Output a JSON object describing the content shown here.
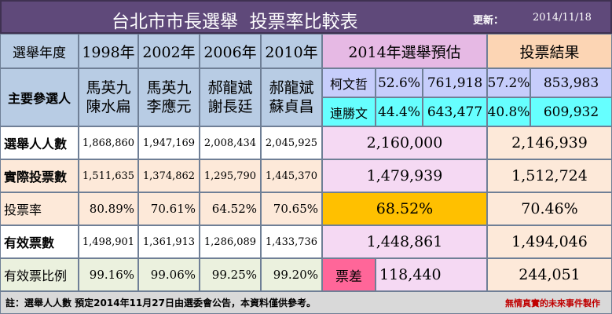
{
  "title": {
    "main": "台北市市長選舉  投票率比較表",
    "updated_label": "更新：",
    "updated_date": "2014/11/18"
  },
  "header": {
    "year_label": "選舉年度",
    "years": [
      "1998年",
      "2002年",
      "2006年",
      "2010年"
    ],
    "forecast": "2014年選舉預估",
    "result": "投票結果"
  },
  "candidates": {
    "label": "主要參選人",
    "y1998": [
      "馬英九",
      "陳水扁"
    ],
    "y2002": [
      "馬英九",
      "李應元"
    ],
    "y2006": [
      "郝龍斌",
      "謝長廷"
    ],
    "y2010": [
      "郝龍斌",
      "蘇貞昌"
    ],
    "c1": {
      "name": "柯文哲",
      "forecast_pct": "52.6%",
      "forecast_votes": "761,918",
      "result_pct": "57.2%",
      "result_votes": "853,983"
    },
    "c2": {
      "name": "連勝文",
      "forecast_pct": "44.4%",
      "forecast_votes": "643,477",
      "result_pct": "40.8%",
      "result_votes": "609,932"
    }
  },
  "rows": [
    {
      "label": "選舉人人數",
      "values": [
        "1,868,860",
        "1,947,169",
        "2,008,434",
        "2,045,925"
      ],
      "forecast": "2,160,000",
      "result": "2,146,939"
    },
    {
      "label": "實際投票數",
      "values": [
        "1,511,635",
        "1,374,862",
        "1,295,790",
        "1,445,370"
      ],
      "forecast": "1,479,939",
      "result": "1,512,724"
    },
    {
      "label": "投票率",
      "values": [
        "80.89%",
        "70.61%",
        "64.52%",
        "70.65%"
      ],
      "forecast": "68.52%",
      "result": "70.46%"
    },
    {
      "label": "有效票數",
      "values": [
        "1,498,901",
        "1,361,913",
        "1,286,089",
        "1,433,736"
      ],
      "forecast": "1,448,861",
      "result": "1,494,046"
    },
    {
      "label": "有效票比例",
      "values": [
        "99.16%",
        "99.06%",
        "99.25%",
        "99.20%"
      ],
      "forecast_label": "票差",
      "forecast": "118,440",
      "result": "244,051"
    }
  ],
  "footer": {
    "note": "註：選舉人人數 預定2014年11月27日由選委會公告，本資料僅供參考。",
    "credit": "無情真實的未來事件製作"
  },
  "colors": {
    "title_bar": "#5f497a",
    "header_blue": "#b8cce4",
    "row_peach": "#fde9d9",
    "row_green": "#ebf1de",
    "forecast_header": "#e6b9e4",
    "forecast_body": "#f5d9f3",
    "result_header": "#fcd5b4",
    "result_body": "#fde9d9",
    "candidate_row1": "#c6cdfb",
    "candidate_row2": "#66ffff",
    "turnout_forecast": "#ffc000",
    "vote_gap": "#ff6699",
    "credit_red": "#c00000"
  }
}
